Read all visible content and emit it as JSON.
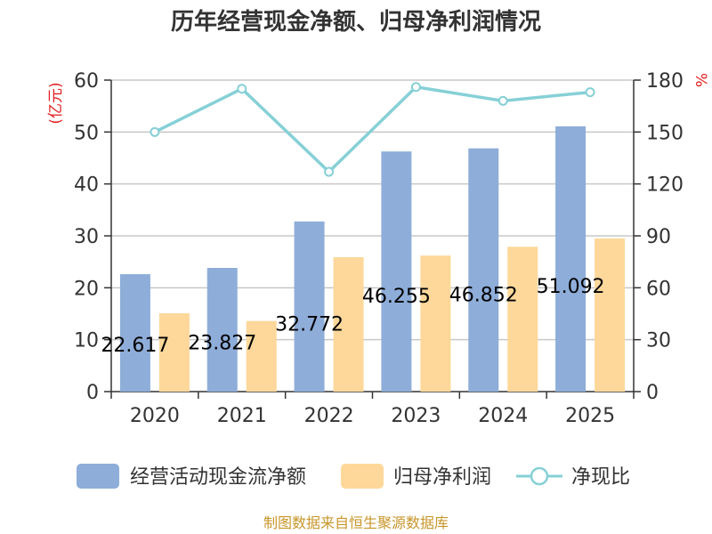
{
  "chart_data": {
    "type": "bar",
    "title": "历年经营现金净额、归母净利润情况",
    "categories": [
      "2020",
      "2021",
      "2022",
      "2023",
      "2024",
      "2025"
    ],
    "left_axis": {
      "unit_label": "(亿元)",
      "ylim": [
        0,
        60
      ],
      "ticks": [
        "0",
        "10",
        "20",
        "30",
        "40",
        "50",
        "60"
      ]
    },
    "right_axis": {
      "unit_label": "%",
      "ylim": [
        0,
        180
      ],
      "ticks": [
        "0",
        "30",
        "60",
        "90",
        "120",
        "150",
        "180"
      ]
    },
    "series": [
      {
        "name": "经营活动现金流净额",
        "kind": "bar",
        "axis": "left",
        "color": "#8eadd9",
        "values": [
          22.617,
          23.827,
          32.772,
          46.255,
          46.852,
          51.092
        ],
        "labels": [
          "22.617",
          "23.827",
          "32.772",
          "46.255",
          "46.852",
          "51.092"
        ]
      },
      {
        "name": "归母净利润",
        "kind": "bar",
        "axis": "left",
        "color": "#fdd89a",
        "values": [
          15.1,
          13.6,
          25.9,
          26.2,
          27.9,
          29.5
        ]
      },
      {
        "name": "净现比",
        "kind": "line",
        "axis": "right",
        "color": "#86d0d6",
        "values": [
          150,
          175,
          127,
          176,
          168,
          173
        ]
      }
    ],
    "grid": true,
    "legend_position": "bottom"
  },
  "footer": {
    "source": "制图数据来自恒生聚源数据库"
  }
}
